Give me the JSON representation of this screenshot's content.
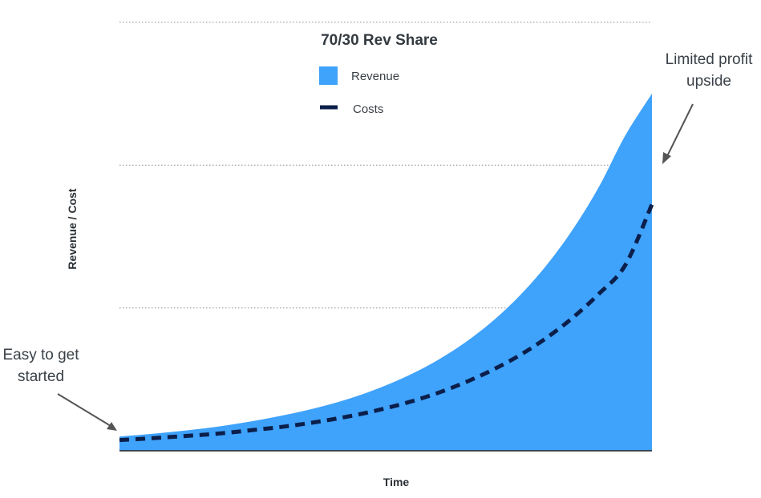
{
  "chart_data": {
    "type": "area",
    "title": "70/30 Rev Share",
    "xlabel": "Time",
    "ylabel": "Revenue / Cost",
    "xlim": [
      0,
      20
    ],
    "ylim": [
      0,
      100
    ],
    "grid": {
      "y": true,
      "style": "dotted",
      "values": [
        40,
        80,
        120
      ]
    },
    "legend": {
      "placement": "top-center"
    },
    "colors": {
      "revenue": "#3fa2fb",
      "costs": "#0b1f4a",
      "grid": "#888888",
      "axis": "#222222",
      "arrow": "#555555"
    },
    "x": [
      0,
      1,
      2,
      3,
      4,
      5,
      6,
      7,
      8,
      9,
      10,
      11,
      12,
      13,
      14,
      15,
      16,
      17,
      18,
      19,
      20
    ],
    "series": [
      {
        "name": "Revenue",
        "style": "area",
        "values": [
          4.0,
          4.6,
          5.3,
          6.1,
          7.1,
          8.3,
          9.7,
          11.3,
          13.2,
          15.5,
          18.3,
          21.6,
          25.6,
          30.4,
          36.2,
          43.2,
          51.6,
          61.7,
          73.8,
          88.3,
          100.0
        ]
      },
      {
        "name": "Costs",
        "style": "dashed-line",
        "values": [
          3.0,
          3.4,
          3.9,
          4.4,
          5.0,
          5.8,
          6.6,
          7.6,
          8.8,
          10.2,
          11.9,
          13.9,
          16.3,
          19.2,
          22.6,
          26.6,
          31.4,
          37.1,
          43.9,
          52.0,
          69.0
        ]
      }
    ],
    "annotations": [
      {
        "lines": [
          "Limited profit",
          "upside"
        ]
      },
      {
        "lines": [
          "Easy to get",
          "started"
        ]
      }
    ]
  }
}
